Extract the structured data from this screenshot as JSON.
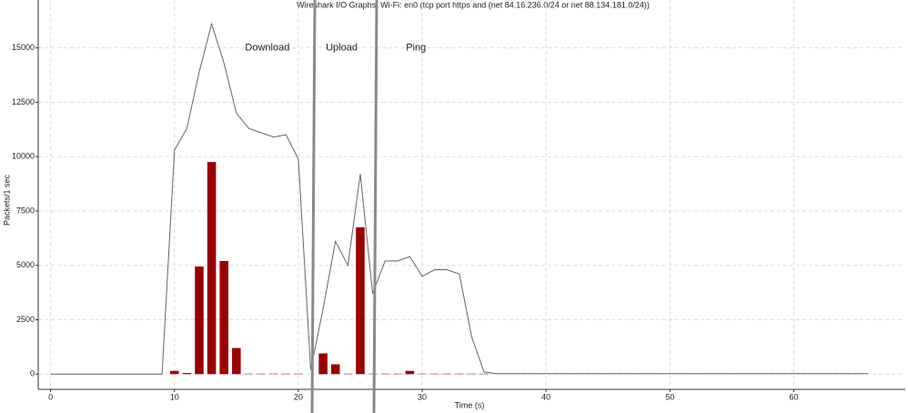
{
  "chart_data": {
    "type": "io_graph",
    "title": "Wireshark I/O Graphs: Wi-Fi: en0 (tcp port https and (net 84.16.236.0/24 or net 88.134.181.0/24))",
    "x_label": "Time (s)",
    "y_label": "Packets/1 sec",
    "annotations": [
      {
        "text": "Download",
        "x": 17.5,
        "y": 15000
      },
      {
        "text": "Upload",
        "x": 23.5,
        "y": 15000
      },
      {
        "text": "Ping",
        "x": 29.5,
        "y": 15000
      }
    ],
    "x": [
      0,
      1,
      2,
      3,
      4,
      5,
      6,
      7,
      8,
      9,
      10,
      11,
      12,
      13,
      14,
      15,
      16,
      17,
      18,
      19,
      20,
      21,
      22,
      23,
      24,
      25,
      26,
      27,
      28,
      29,
      30,
      31,
      32,
      33,
      34,
      35,
      36,
      37,
      38,
      39,
      40,
      41,
      42,
      43,
      44,
      45,
      46,
      47,
      48,
      49,
      50,
      51,
      52,
      53,
      54,
      55,
      56,
      57,
      58,
      59,
      60,
      61,
      62,
      63,
      64,
      65,
      66
    ],
    "series": [
      {
        "kind": "line",
        "color": "#666666",
        "values": [
          0,
          0,
          0,
          0,
          0,
          0,
          0,
          0,
          0,
          0,
          10300,
          11300,
          13900,
          16100,
          14300,
          12000,
          11300,
          11100,
          10900,
          11000,
          9900,
          200,
          3000,
          6100,
          5000,
          9200,
          3700,
          5200,
          5200,
          5400,
          4500,
          4800,
          4800,
          4600,
          1700,
          100,
          20,
          20,
          20,
          20,
          20,
          20,
          20,
          20,
          20,
          20,
          20,
          20,
          20,
          20,
          20,
          20,
          20,
          20,
          20,
          20,
          20,
          20,
          20,
          20,
          20,
          20,
          20,
          20,
          20,
          20,
          20
        ]
      },
      {
        "kind": "bar",
        "color": "#990000",
        "values": [
          null,
          null,
          null,
          null,
          null,
          null,
          null,
          null,
          null,
          null,
          150,
          50,
          4950,
          9750,
          5200,
          1200,
          20,
          20,
          20,
          20,
          20,
          0,
          950,
          450,
          20,
          6750,
          20,
          20,
          20,
          150,
          20,
          20,
          20,
          20,
          20,
          20,
          null,
          null,
          null,
          null,
          null,
          null,
          null,
          null,
          null,
          null,
          null,
          null,
          null,
          null,
          null,
          null,
          null,
          null,
          null,
          null,
          null,
          null,
          null,
          null,
          null,
          null,
          null,
          null,
          null,
          null,
          null
        ]
      }
    ],
    "xlim": [
      -1,
      69
    ],
    "ylim": [
      -700,
      17200
    ],
    "xticks": [
      0,
      10,
      20,
      30,
      40,
      50,
      60
    ],
    "yticks": [
      0,
      2500,
      5000,
      7500,
      10000,
      12500,
      15000
    ],
    "grid": true
  }
}
